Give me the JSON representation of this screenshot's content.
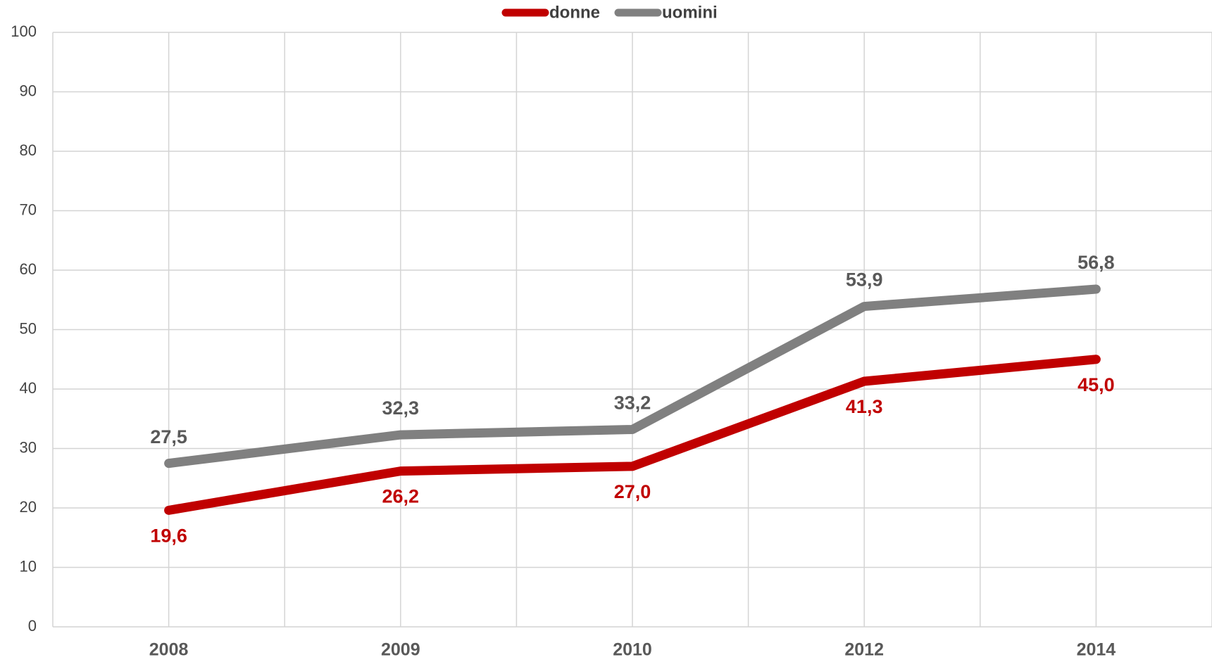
{
  "chart_data": {
    "type": "line",
    "categories": [
      "2008",
      "2009",
      "2010",
      "2012",
      "2014"
    ],
    "series": [
      {
        "name": "donne",
        "color": "#c00000",
        "values": [
          19.6,
          26.2,
          27.0,
          41.3,
          45.0
        ],
        "value_labels": [
          "19,6",
          "26,2",
          "27,0",
          "41,3",
          "45,0"
        ]
      },
      {
        "name": "uomini",
        "color": "#808080",
        "values": [
          27.5,
          32.3,
          33.2,
          53.9,
          56.8
        ],
        "value_labels": [
          "27,5",
          "32,3",
          "33,2",
          "53,9",
          "56,8"
        ]
      }
    ],
    "ylim": [
      0,
      100
    ],
    "yticks": [
      0,
      10,
      20,
      30,
      40,
      50,
      60,
      70,
      80,
      90,
      100
    ],
    "grid": true,
    "legend": "top"
  }
}
